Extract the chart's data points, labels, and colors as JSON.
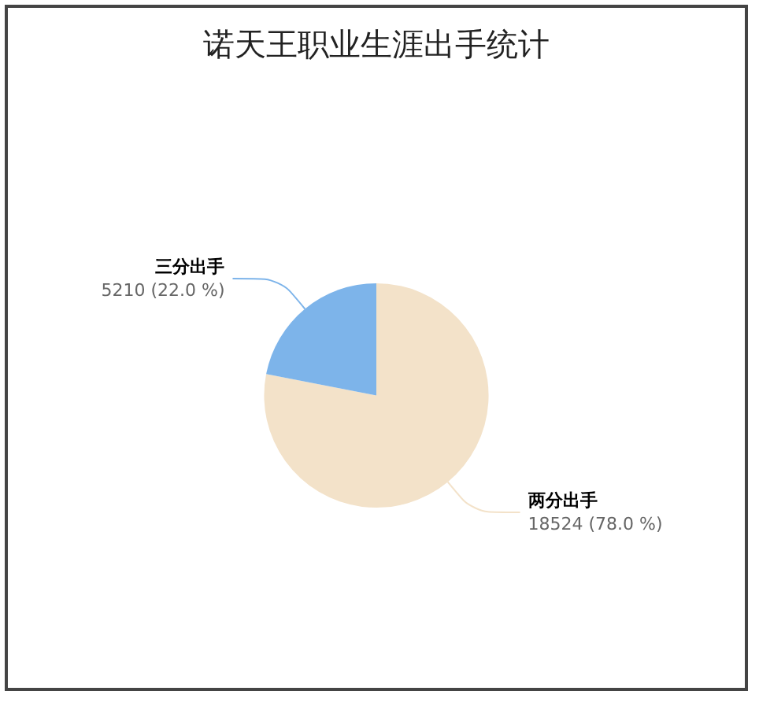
{
  "chart_data": {
    "type": "pie",
    "title": "诺天王职业生涯出手统计",
    "categories": [
      "两分出手",
      "三分出手"
    ],
    "values": [
      18524,
      5210
    ],
    "colors": [
      "#f3e2c9",
      "#7db4ea"
    ],
    "value_labels": [
      "18524 (78.0 %)",
      "5210 (22.0 %)"
    ],
    "legend": false
  }
}
